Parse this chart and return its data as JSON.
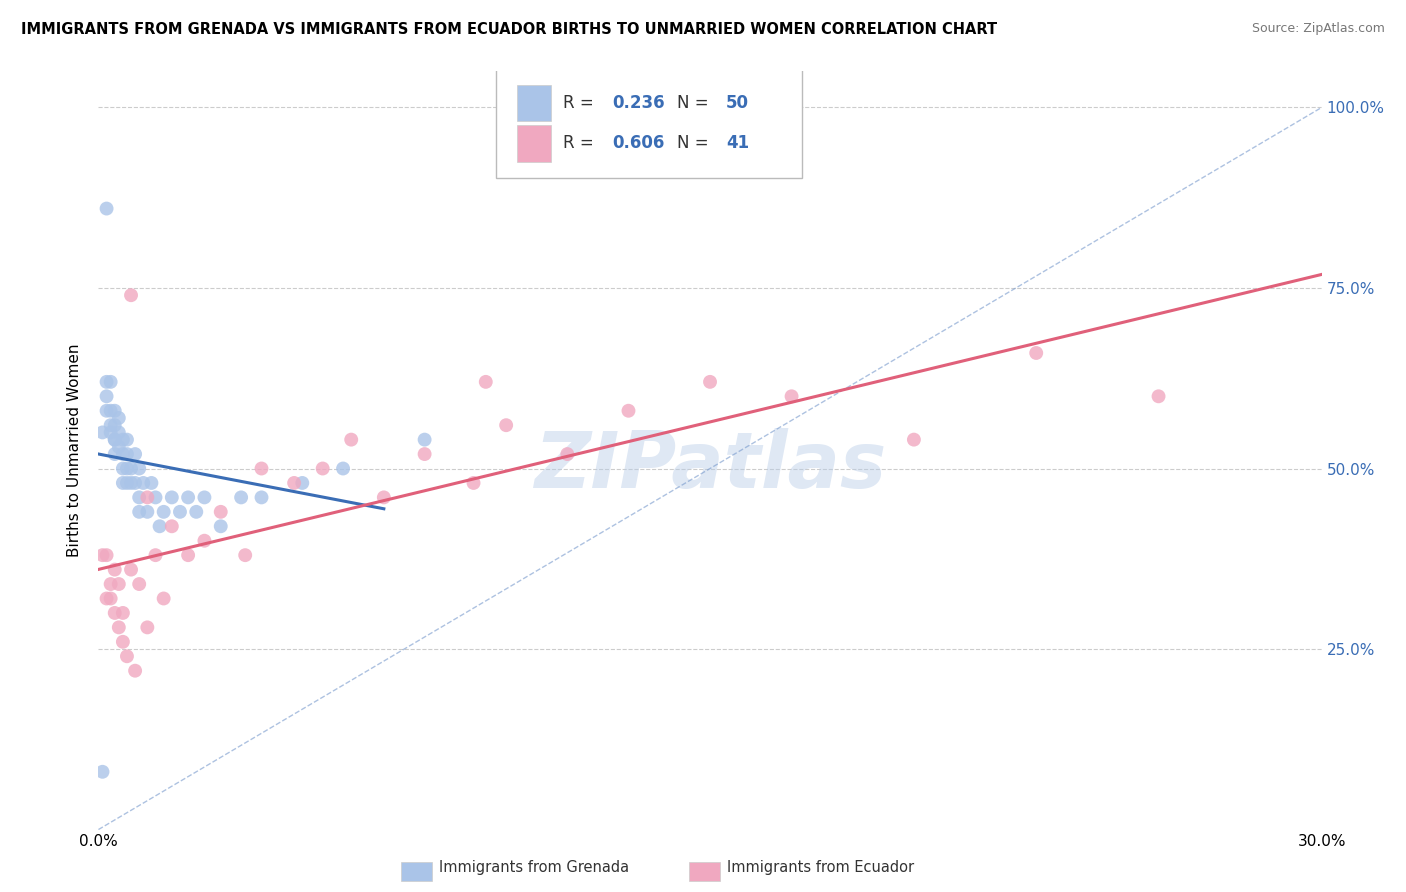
{
  "title": "IMMIGRANTS FROM GRENADA VS IMMIGRANTS FROM ECUADOR BIRTHS TO UNMARRIED WOMEN CORRELATION CHART",
  "source": "Source: ZipAtlas.com",
  "ylabel": "Births to Unmarried Women",
  "xlim": [
    0.0,
    0.3
  ],
  "ylim": [
    0.0,
    1.05
  ],
  "color_grenada": "#aac4e8",
  "color_ecuador": "#f0a8c0",
  "trend_color_grenada": "#3a6db5",
  "trend_color_ecuador": "#e0607a",
  "watermark": "ZIPatlas",
  "grenada_x": [
    0.001,
    0.001,
    0.002,
    0.002,
    0.002,
    0.003,
    0.003,
    0.003,
    0.003,
    0.004,
    0.004,
    0.004,
    0.004,
    0.004,
    0.005,
    0.005,
    0.005,
    0.006,
    0.006,
    0.006,
    0.006,
    0.007,
    0.007,
    0.007,
    0.007,
    0.008,
    0.008,
    0.009,
    0.009,
    0.01,
    0.01,
    0.01,
    0.011,
    0.012,
    0.013,
    0.014,
    0.015,
    0.016,
    0.018,
    0.02,
    0.022,
    0.024,
    0.026,
    0.03,
    0.035,
    0.04,
    0.05,
    0.06,
    0.08,
    0.002
  ],
  "grenada_y": [
    0.08,
    0.55,
    0.6,
    0.62,
    0.58,
    0.58,
    0.62,
    0.55,
    0.56,
    0.58,
    0.54,
    0.56,
    0.52,
    0.54,
    0.57,
    0.53,
    0.55,
    0.5,
    0.54,
    0.48,
    0.52,
    0.52,
    0.48,
    0.5,
    0.54,
    0.5,
    0.48,
    0.52,
    0.48,
    0.5,
    0.46,
    0.44,
    0.48,
    0.44,
    0.48,
    0.46,
    0.42,
    0.44,
    0.46,
    0.44,
    0.46,
    0.44,
    0.46,
    0.42,
    0.46,
    0.46,
    0.48,
    0.5,
    0.54,
    0.86
  ],
  "ecuador_x": [
    0.001,
    0.002,
    0.002,
    0.003,
    0.003,
    0.004,
    0.004,
    0.005,
    0.005,
    0.006,
    0.006,
    0.007,
    0.008,
    0.009,
    0.01,
    0.012,
    0.014,
    0.016,
    0.018,
    0.022,
    0.026,
    0.03,
    0.036,
    0.04,
    0.048,
    0.055,
    0.062,
    0.07,
    0.08,
    0.092,
    0.1,
    0.115,
    0.13,
    0.15,
    0.17,
    0.2,
    0.23,
    0.26,
    0.008,
    0.012,
    0.095
  ],
  "ecuador_y": [
    0.38,
    0.32,
    0.38,
    0.34,
    0.32,
    0.3,
    0.36,
    0.28,
    0.34,
    0.26,
    0.3,
    0.24,
    0.36,
    0.22,
    0.34,
    0.28,
    0.38,
    0.32,
    0.42,
    0.38,
    0.4,
    0.44,
    0.38,
    0.5,
    0.48,
    0.5,
    0.54,
    0.46,
    0.52,
    0.48,
    0.56,
    0.52,
    0.58,
    0.62,
    0.6,
    0.54,
    0.66,
    0.6,
    0.74,
    0.46,
    0.62
  ]
}
